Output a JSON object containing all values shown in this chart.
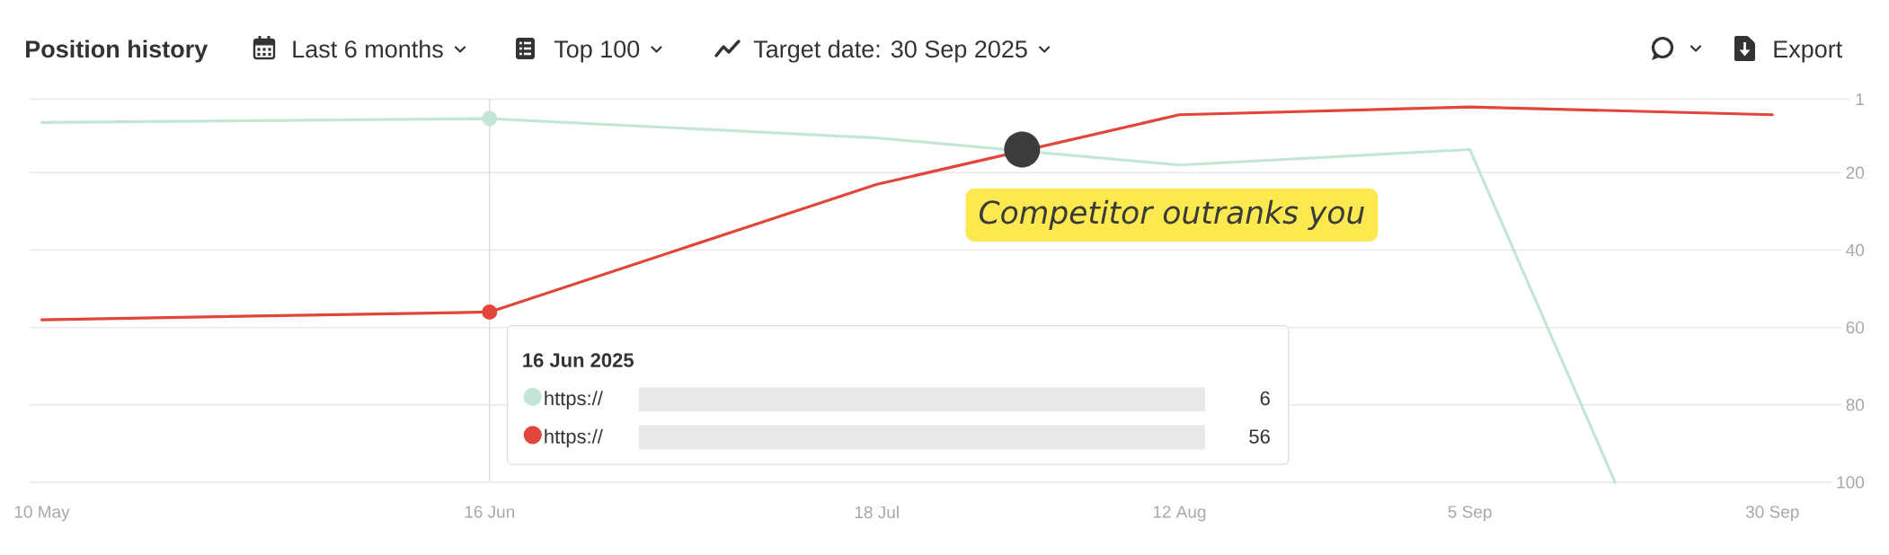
{
  "chart_data": {
    "type": "line",
    "title": "Position history",
    "annotations": [
      "Last 6 months",
      "Top 100",
      "Target date: 30 Sep 2025",
      "Export",
      {
        "text": "Competitor outranks you",
        "x": "2025-07-30",
        "y": 14
      },
      "6",
      "56"
    ],
    "x": [
      "2025-05-10",
      "2025-06-16",
      "2025-07-18",
      "2025-08-12",
      "2025-09-05",
      "2025-09-30"
    ],
    "series": [
      {
        "name": "https://",
        "color": "#c4e6d4",
        "x": [
          "2025-05-10",
          "2025-06-16",
          "2025-07-18",
          "2025-08-12",
          "2025-09-05",
          "2025-09-17"
        ],
        "values": [
          7,
          6,
          11,
          18,
          14,
          100
        ]
      },
      {
        "name": "https://",
        "color": "#e2463b",
        "values": [
          58,
          56,
          23,
          5,
          3,
          5
        ]
      },
      {
        "type": "scatter",
        "x": [
          "2025-06-16"
        ],
        "values": [
          6
        ],
        "color": "#c4e6d4",
        "marker": "circle"
      },
      {
        "type": "scatter",
        "x": [
          "2025-06-16"
        ],
        "values": [
          56
        ],
        "color": "#e2463b",
        "marker": "circle"
      }
    ],
    "legend": "bottom",
    "legend_title": "16 Jun 2025",
    "xlim": [
      "2025-05-09",
      "2025-10-08"
    ],
    "xticks": [
      {
        "value": "2025-05-10",
        "label": "10 May"
      },
      {
        "value": "2025-06-16",
        "label": "16 Jun"
      },
      {
        "value": "2025-07-18",
        "label": "18 Jul"
      },
      {
        "value": "2025-08-12",
        "label": "12 Aug"
      },
      {
        "value": "2025-09-05",
        "label": "5 Sep"
      },
      {
        "value": "2025-09-30",
        "label": "30 Sep"
      }
    ],
    "ylim": [
      100,
      1
    ],
    "yticks": [
      1,
      20,
      40,
      60,
      80,
      100
    ],
    "grid": "y",
    "line_style": "solid",
    "ref_lines": [
      {
        "axis": "x",
        "value": "2025-06-16",
        "color": "#e0e0e0"
      }
    ]
  }
}
